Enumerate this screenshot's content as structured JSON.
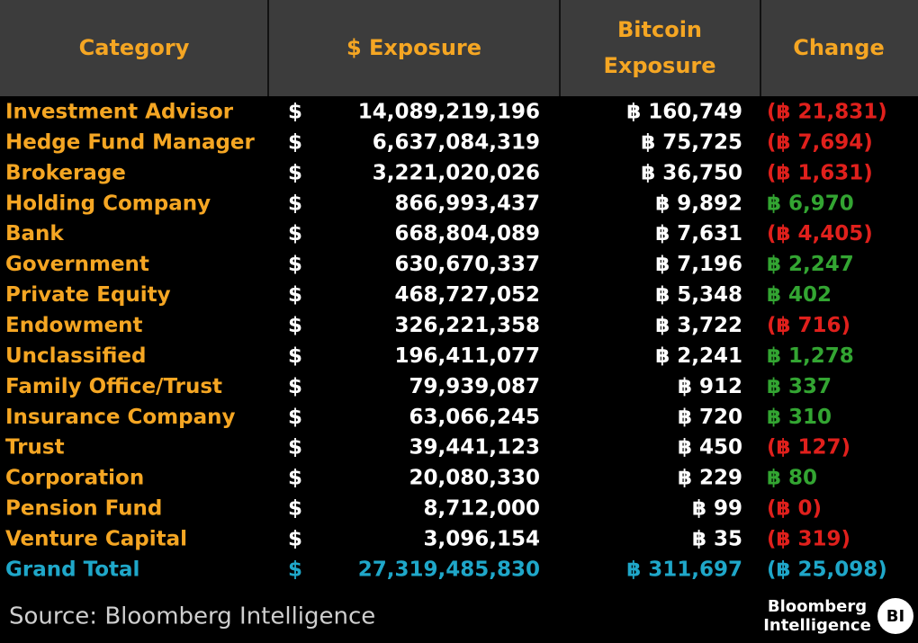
{
  "table": {
    "header": [
      "Category",
      "$ Exposure",
      [
        "Bitcoin",
        "Exposure"
      ],
      "Change"
    ],
    "rows": [
      {
        "category": "Investment Advisor",
        "dollar": "$",
        "exposure": "14,089,219,196",
        "bitcoin": "฿ 160,749",
        "change": "(฿ 21,831)"
      },
      {
        "category": "Hedge Fund Manager",
        "dollar": "$",
        "exposure": "6,637,084,319",
        "bitcoin": "฿ 75,725",
        "change": "(฿ 7,694)"
      },
      {
        "category": "Brokerage",
        "dollar": "$",
        "exposure": "3,221,020,026",
        "bitcoin": "฿ 36,750",
        "change": "(฿ 1,631)"
      },
      {
        "category": "Holding Company",
        "dollar": "$",
        "exposure": "866,993,437",
        "bitcoin": "฿ 9,892",
        "change": "฿ 6,970"
      },
      {
        "category": "Bank",
        "dollar": "$",
        "exposure": "668,804,089",
        "bitcoin": "฿ 7,631",
        "change": "(฿ 4,405)"
      },
      {
        "category": "Government",
        "dollar": "$",
        "exposure": "630,670,337",
        "bitcoin": "฿ 7,196",
        "change": "฿ 2,247"
      },
      {
        "category": "Private Equity",
        "dollar": "$",
        "exposure": "468,727,052",
        "bitcoin": "฿ 5,348",
        "change": "฿ 402"
      },
      {
        "category": "Endowment",
        "dollar": "$",
        "exposure": "326,221,358",
        "bitcoin": "฿ 3,722",
        "change": "(฿ 716)"
      },
      {
        "category": "Unclassified",
        "dollar": "$",
        "exposure": "196,411,077",
        "bitcoin": "฿ 2,241",
        "change": "฿ 1,278"
      },
      {
        "category": "Family Office/Trust",
        "dollar": "$",
        "exposure": "79,939,087",
        "bitcoin": "฿ 912",
        "change": "฿ 337"
      },
      {
        "category": "Insurance Company",
        "dollar": "$",
        "exposure": "63,066,245",
        "bitcoin": "฿ 720",
        "change": "฿ 310"
      },
      {
        "category": "Trust",
        "dollar": "$",
        "exposure": "39,441,123",
        "bitcoin": "฿ 450",
        "change": "(฿ 127)"
      },
      {
        "category": "Corporation",
        "dollar": "$",
        "exposure": "20,080,330",
        "bitcoin": "฿ 229",
        "change": "฿ 80"
      },
      {
        "category": "Pension Fund",
        "dollar": "$",
        "exposure": "8,712,000",
        "bitcoin": "฿ 99",
        "change": "(฿ 0)"
      },
      {
        "category": "Venture Capital",
        "dollar": "$",
        "exposure": "3,096,154",
        "bitcoin": "฿ 35",
        "change": "(฿ 319)"
      }
    ],
    "total": {
      "category": "Grand Total",
      "dollar": "$",
      "exposure": "27,319,485,830",
      "bitcoin": "฿ 311,697",
      "change": "(฿ 25,098)"
    }
  },
  "footer": {
    "source": "Source: Bloomberg Intelligence",
    "logo": [
      "Bloomberg",
      "Intelligence"
    ],
    "badge": "BI"
  }
}
